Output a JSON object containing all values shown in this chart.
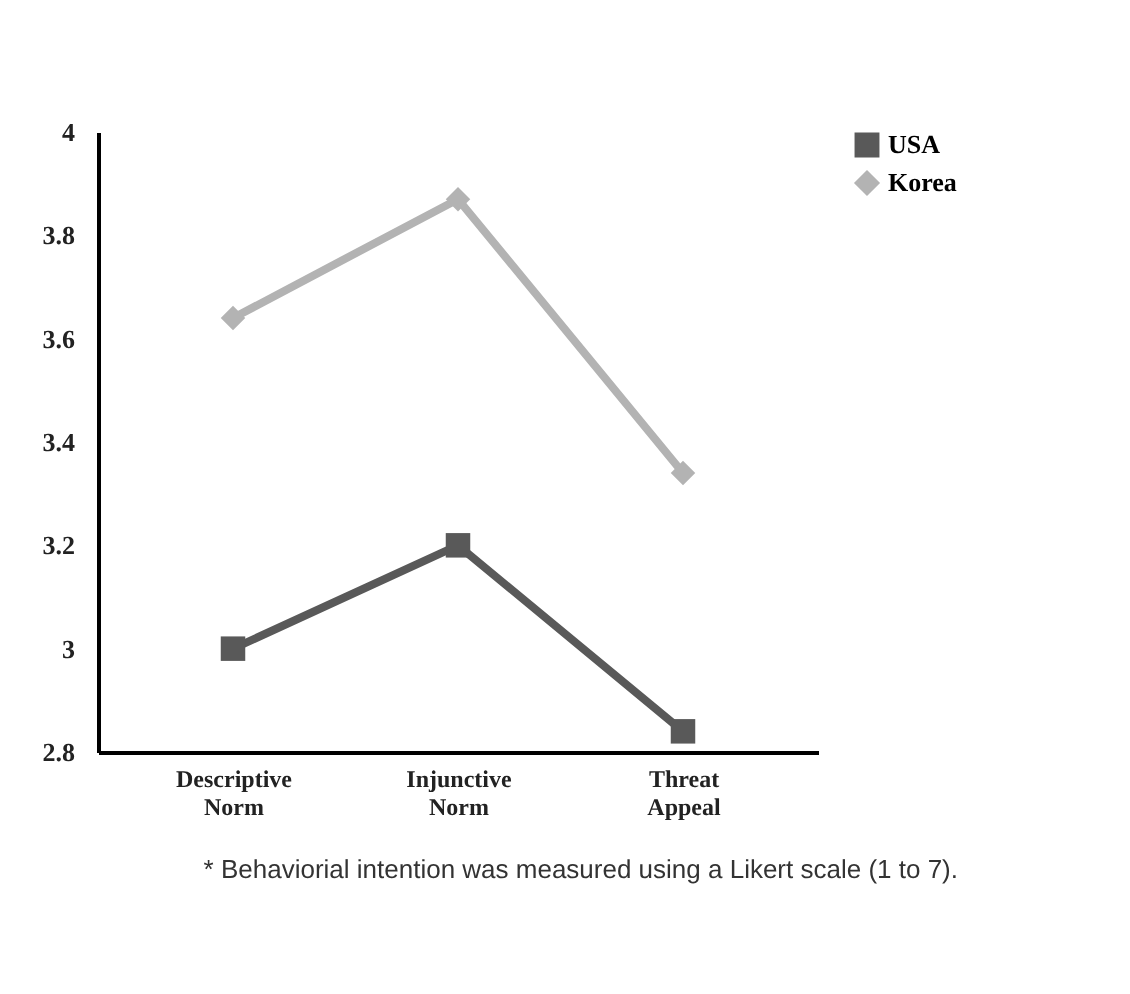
{
  "chart_data": {
    "type": "line",
    "categories": [
      "Descriptive Norm",
      "Injunctive Norm",
      "Threat Appeal"
    ],
    "series": [
      {
        "name": "USA",
        "color": "#595959",
        "marker": "square",
        "values": [
          3.0,
          3.2,
          2.84
        ]
      },
      {
        "name": "Korea",
        "color": "#b3b3b3",
        "marker": "diamond",
        "values": [
          3.64,
          3.87,
          3.34
        ]
      }
    ],
    "ylim": [
      2.8,
      4
    ],
    "yticks": [
      2.8,
      3,
      3.2,
      3.4,
      3.6,
      3.8,
      4
    ],
    "grid": false,
    "legend": "top right",
    "line_style": "solid",
    "annotations": [
      "* Behaviorial intention was measured using a Likert scale (1 to 7)."
    ]
  }
}
